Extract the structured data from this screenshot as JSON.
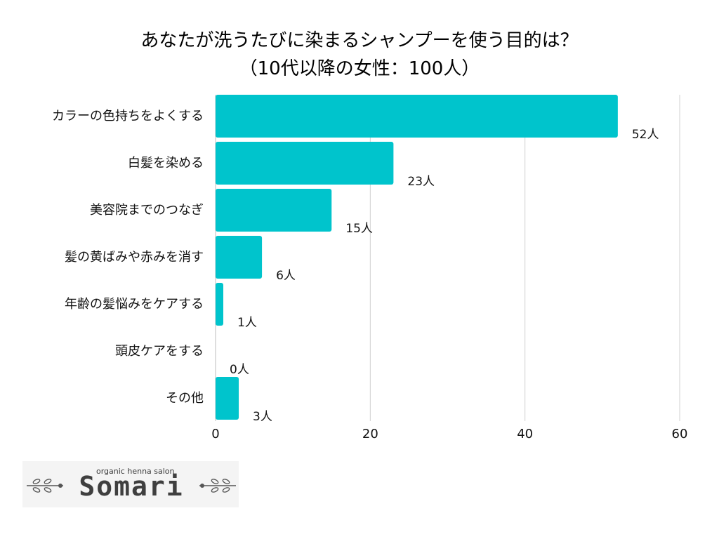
{
  "title": {
    "line1": "あなたが洗うたびに染まるシャンプーを使う目的は？",
    "line2": "（10代以降の女性：100人）"
  },
  "chart_data": {
    "type": "bar",
    "orientation": "horizontal",
    "categories": [
      "カラーの色持ちをよくする",
      "白髪を染める",
      "美容院までのつなぎ",
      "髪の黄ばみや赤みを消す",
      "年齢の髪悩みをケアする",
      "頭皮ケアをする",
      "その他"
    ],
    "values": [
      52,
      23,
      15,
      6,
      1,
      0,
      3
    ],
    "value_labels": [
      "52人",
      "23人",
      "15人",
      "6人",
      "1人",
      "0人",
      "3人"
    ],
    "xlim": [
      0,
      60
    ],
    "xticks": [
      0,
      20,
      40,
      60
    ],
    "xtick_labels": [
      "0",
      "20",
      "40",
      "60"
    ],
    "bar_color": "#00c4cc",
    "grid": true
  },
  "logo": {
    "tagline": "organic henna salon",
    "wordmark": "Somari"
  }
}
